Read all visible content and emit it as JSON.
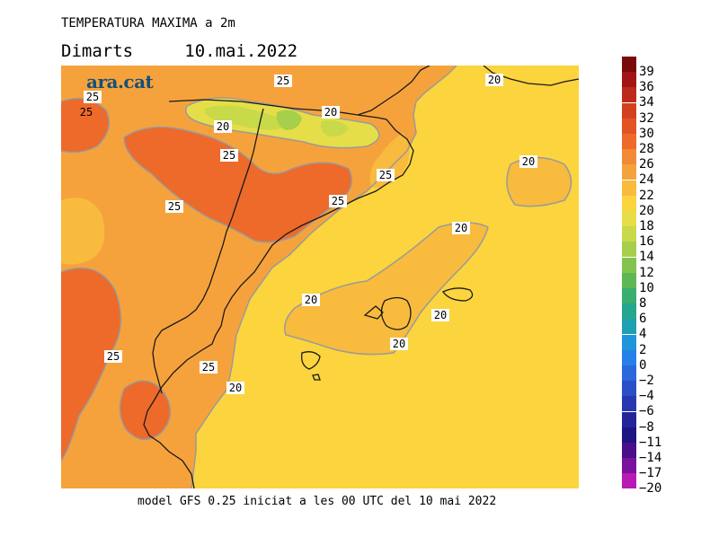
{
  "title": "TEMPERATURA MAXIMA a 2m",
  "subtitle": "Dimarts     10.mai.2022",
  "brand": "ara.cat",
  "footer": "model GFS 0.25 iniciat a les 00 UTC del 10 mai 2022",
  "contour_labels": [
    "25",
    "20",
    "20",
    "25",
    "25",
    "25",
    "25",
    "25",
    "20",
    "20",
    "25",
    "20",
    "20",
    "20",
    "20",
    "25",
    "25",
    "20"
  ],
  "legend": [
    {
      "label": "39",
      "color": "#7a0a0a"
    },
    {
      "label": "36",
      "color": "#a11515"
    },
    {
      "label": "34",
      "color": "#bd2a1c"
    },
    {
      "label": "32",
      "color": "#d4401f"
    },
    {
      "label": "30",
      "color": "#e25424"
    },
    {
      "label": "28",
      "color": "#ed6a2a"
    },
    {
      "label": "26",
      "color": "#f28a35"
    },
    {
      "label": "24",
      "color": "#f6a23c"
    },
    {
      "label": "22",
      "color": "#f8bb3e"
    },
    {
      "label": "20",
      "color": "#fbd43e"
    },
    {
      "label": "18",
      "color": "#e6de48"
    },
    {
      "label": "16",
      "color": "#c8d94a"
    },
    {
      "label": "14",
      "color": "#a6cf4c"
    },
    {
      "label": "12",
      "color": "#83c450"
    },
    {
      "label": "10",
      "color": "#5db755"
    },
    {
      "label": "8",
      "color": "#3aae6e"
    },
    {
      "label": "6",
      "color": "#26a68c"
    },
    {
      "label": "4",
      "color": "#1ea0b4"
    },
    {
      "label": "2",
      "color": "#1f96d8"
    },
    {
      "label": "0",
      "color": "#2580e8"
    },
    {
      "label": "−2",
      "color": "#2a68dc"
    },
    {
      "label": "−4",
      "color": "#2a4fc6"
    },
    {
      "label": "−6",
      "color": "#2838b0"
    },
    {
      "label": "−8",
      "color": "#24249a"
    },
    {
      "label": "−11",
      "color": "#1e1482"
    },
    {
      "label": "−14",
      "color": "#4a0e8a"
    },
    {
      "label": "−17",
      "color": "#7a12a0"
    },
    {
      "label": "−20",
      "color": "#b81ab4"
    }
  ]
}
